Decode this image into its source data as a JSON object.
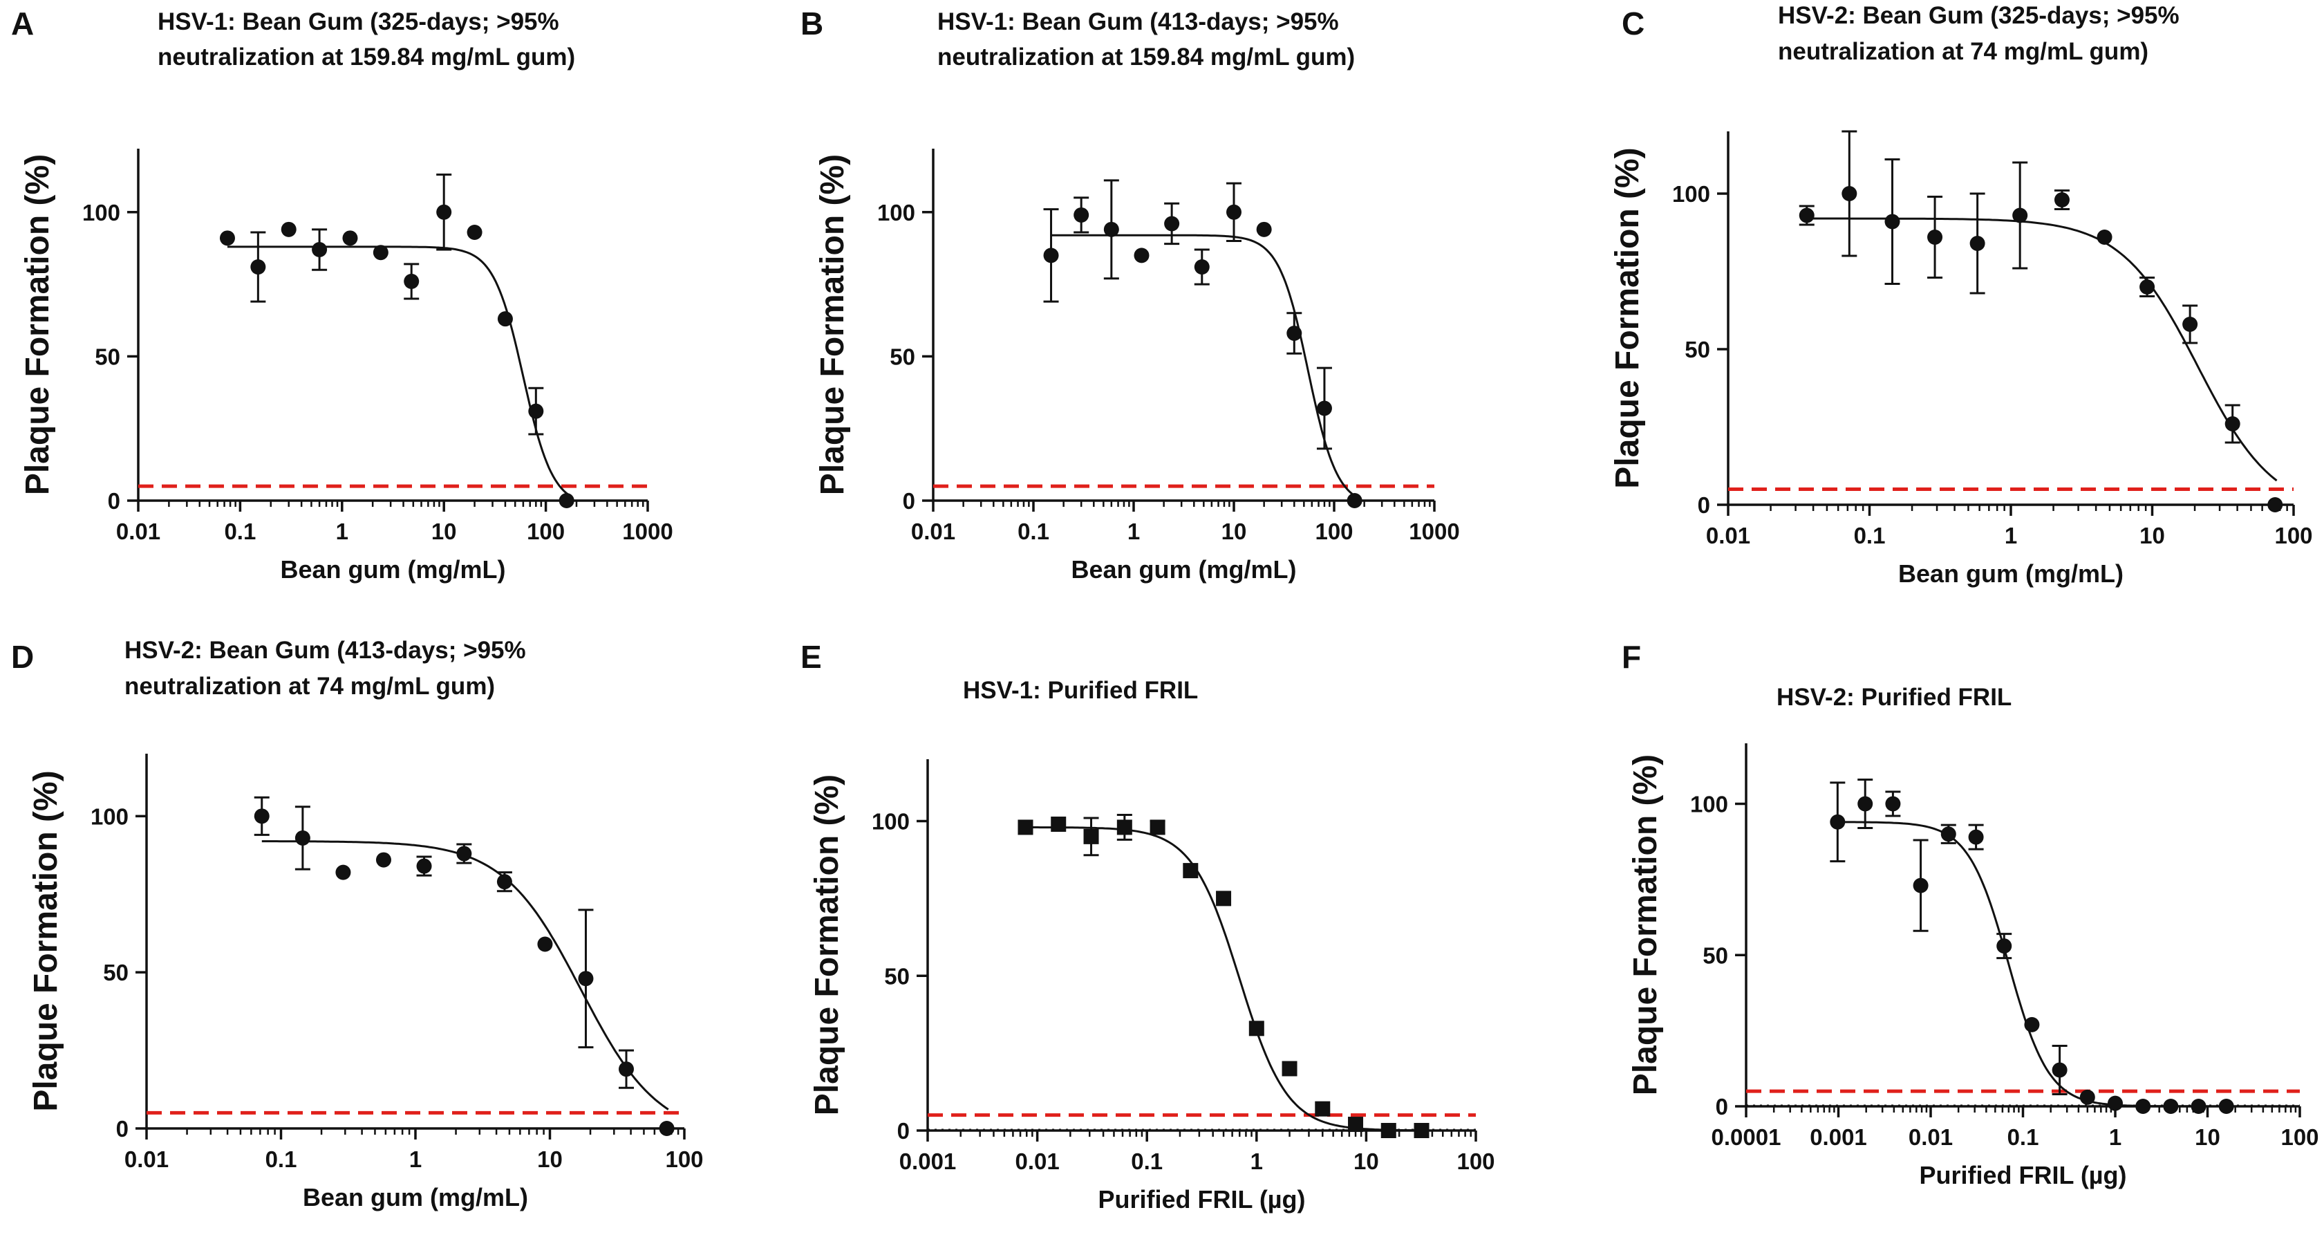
{
  "colors": {
    "ink": "#111111",
    "threshold": "#e0201b",
    "baseline": "#111111"
  },
  "chart_data": [
    {
      "panel": "A",
      "type": "scatter",
      "title": [
        "HSV-1: Bean Gum (325-days; >95%",
        "neutralization at 159.84 mg/mL gum)"
      ],
      "xlabel": "Bean gum (mg/mL)",
      "ylabel": "Plaque Formation (%)",
      "xscale": "log",
      "xlim": [
        0.01,
        1000
      ],
      "ylim": [
        0,
        122
      ],
      "xticks": [
        0.01,
        0.1,
        1,
        10,
        100,
        1000
      ],
      "xticklabels": [
        "0.01",
        "0.1",
        "1",
        "10",
        "100",
        "1000"
      ],
      "yticks": [
        0,
        50,
        100
      ],
      "yticklabels": [
        "0",
        "50",
        "100"
      ],
      "marker": "circle",
      "points": [
        {
          "x": 0.075,
          "y": 91
        },
        {
          "x": 0.15,
          "y": 81,
          "err": 12
        },
        {
          "x": 0.3,
          "y": 94
        },
        {
          "x": 0.6,
          "y": 87,
          "err": 7
        },
        {
          "x": 1.2,
          "y": 91
        },
        {
          "x": 2.4,
          "y": 86
        },
        {
          "x": 4.8,
          "y": 76,
          "err": 6
        },
        {
          "x": 10,
          "y": 100,
          "err": 13
        },
        {
          "x": 20,
          "y": 93
        },
        {
          "x": 40,
          "y": 63
        },
        {
          "x": 80,
          "y": 31,
          "err": 8
        },
        {
          "x": 160,
          "y": 0
        }
      ],
      "fit": {
        "top": 88,
        "bottom": -2,
        "ec50": 60,
        "hill": 3.0,
        "x_start": 0.075,
        "x_end": 165
      },
      "threshold": 5
    },
    {
      "panel": "B",
      "type": "scatter",
      "title": [
        "HSV-1: Bean Gum (413-days; >95%",
        "neutralization at 159.84 mg/mL gum)"
      ],
      "xlabel": "Bean gum (mg/mL)",
      "ylabel": "Plaque Formation (%)",
      "xscale": "log",
      "xlim": [
        0.01,
        1000
      ],
      "ylim": [
        0,
        122
      ],
      "xticks": [
        0.01,
        0.1,
        1,
        10,
        100,
        1000
      ],
      "xticklabels": [
        "0.01",
        "0.1",
        "1",
        "10",
        "100",
        "1000"
      ],
      "yticks": [
        0,
        50,
        100
      ],
      "yticklabels": [
        "0",
        "50",
        "100"
      ],
      "marker": "circle",
      "points": [
        {
          "x": 0.15,
          "y": 85,
          "err": 16
        },
        {
          "x": 0.3,
          "y": 99,
          "err": 6
        },
        {
          "x": 0.6,
          "y": 94,
          "err": 17
        },
        {
          "x": 1.2,
          "y": 85
        },
        {
          "x": 2.4,
          "y": 96,
          "err": 7
        },
        {
          "x": 4.8,
          "y": 81,
          "err": 6
        },
        {
          "x": 10,
          "y": 100,
          "err": 10
        },
        {
          "x": 20,
          "y": 94
        },
        {
          "x": 40,
          "y": 58,
          "err": 7
        },
        {
          "x": 80,
          "y": 32,
          "err": 14
        },
        {
          "x": 160,
          "y": 0
        }
      ],
      "fit": {
        "top": 92,
        "bottom": -2,
        "ec50": 55,
        "hill": 3.0,
        "x_start": 0.15,
        "x_end": 165
      },
      "threshold": 5
    },
    {
      "panel": "C",
      "type": "scatter",
      "title": [
        "HSV-2: Bean Gum (325-days; >95%",
        "neutralization at 74 mg/mL gum)"
      ],
      "xlabel": "Bean gum (mg/mL)",
      "ylabel": "Plaque Formation (%)",
      "xscale": "log",
      "xlim": [
        0.01,
        100
      ],
      "ylim": [
        0,
        120
      ],
      "xticks": [
        0.01,
        0.1,
        1,
        10,
        100
      ],
      "xticklabels": [
        "0.01",
        "0.1",
        "1",
        "10",
        "100"
      ],
      "yticks": [
        0,
        50,
        100
      ],
      "yticklabels": [
        "0",
        "50",
        "100"
      ],
      "marker": "circle",
      "points": [
        {
          "x": 0.036,
          "y": 93,
          "err": 3
        },
        {
          "x": 0.072,
          "y": 100,
          "err": 20
        },
        {
          "x": 0.145,
          "y": 91,
          "err": 20
        },
        {
          "x": 0.29,
          "y": 86,
          "err": 13
        },
        {
          "x": 0.58,
          "y": 84,
          "err": 16
        },
        {
          "x": 1.16,
          "y": 93,
          "err": 17
        },
        {
          "x": 2.3,
          "y": 98,
          "err": 3
        },
        {
          "x": 4.6,
          "y": 86
        },
        {
          "x": 9.2,
          "y": 70,
          "err": 3
        },
        {
          "x": 18.5,
          "y": 58,
          "err": 6
        },
        {
          "x": 37,
          "y": 26,
          "err": 6
        },
        {
          "x": 74,
          "y": 0
        }
      ],
      "fit": {
        "top": 92,
        "bottom": -3,
        "ec50": 21,
        "hill": 1.6,
        "x_start": 0.036,
        "x_end": 76
      },
      "threshold": 5
    },
    {
      "panel": "D",
      "type": "scatter",
      "title": [
        "HSV-2: Bean Gum (413-days; >95%",
        "neutralization at 74 mg/mL gum)"
      ],
      "xlabel": "Bean gum (mg/mL)",
      "ylabel": "Plaque Formation (%)",
      "xscale": "log",
      "xlim": [
        0.01,
        100
      ],
      "ylim": [
        0,
        120
      ],
      "xticks": [
        0.01,
        0.1,
        1,
        10,
        100
      ],
      "xticklabels": [
        "0.01",
        "0.1",
        "1",
        "10",
        "100"
      ],
      "yticks": [
        0,
        50,
        100
      ],
      "yticklabels": [
        "0",
        "50",
        "100"
      ],
      "marker": "circle",
      "points": [
        {
          "x": 0.072,
          "y": 100,
          "err": 6
        },
        {
          "x": 0.145,
          "y": 93,
          "err": 10
        },
        {
          "x": 0.29,
          "y": 82
        },
        {
          "x": 0.58,
          "y": 86
        },
        {
          "x": 1.16,
          "y": 84,
          "err": 3
        },
        {
          "x": 2.3,
          "y": 88,
          "err": 3
        },
        {
          "x": 4.6,
          "y": 79,
          "err": 3
        },
        {
          "x": 9.2,
          "y": 59
        },
        {
          "x": 18.5,
          "y": 48,
          "err": 22
        },
        {
          "x": 37,
          "y": 19,
          "err": 6
        },
        {
          "x": 74,
          "y": 0
        }
      ],
      "fit": {
        "top": 92,
        "bottom": -3,
        "ec50": 17,
        "hill": 1.5,
        "x_start": 0.072,
        "x_end": 76
      },
      "threshold": 5
    },
    {
      "panel": "E",
      "type": "scatter",
      "title": [
        "HSV-1: Purified FRIL"
      ],
      "xlabel": "Purified FRIL (µg)",
      "ylabel": "Plaque Formation (%)",
      "xscale": "log",
      "xlim": [
        0.001,
        100
      ],
      "ylim": [
        0,
        120
      ],
      "xticks": [
        0.001,
        0.01,
        0.1,
        1,
        10,
        100
      ],
      "xticklabels": [
        "0.001",
        "0.01",
        "0.1",
        "1",
        "10",
        "100"
      ],
      "yticks": [
        0,
        50,
        100
      ],
      "yticklabels": [
        "0",
        "50",
        "100"
      ],
      "marker": "square",
      "points": [
        {
          "x": 0.0078,
          "y": 98
        },
        {
          "x": 0.0156,
          "y": 99
        },
        {
          "x": 0.031,
          "y": 95,
          "err": 6
        },
        {
          "x": 0.0625,
          "y": 98,
          "err": 4
        },
        {
          "x": 0.125,
          "y": 98,
          "err": 2
        },
        {
          "x": 0.25,
          "y": 84
        },
        {
          "x": 0.5,
          "y": 75
        },
        {
          "x": 1,
          "y": 33
        },
        {
          "x": 2,
          "y": 20
        },
        {
          "x": 4,
          "y": 7
        },
        {
          "x": 8,
          "y": 2
        },
        {
          "x": 16,
          "y": 0
        },
        {
          "x": 32,
          "y": 0
        }
      ],
      "fit": {
        "top": 98,
        "bottom": 0,
        "ec50": 0.7,
        "hill": 2.0,
        "x_start": 0.0078,
        "x_end": 32
      },
      "threshold": 5,
      "baseline": 0
    },
    {
      "panel": "F",
      "type": "scatter",
      "title": [
        "HSV-2: Purified FRIL"
      ],
      "xlabel": "Purified FRIL (µg)",
      "ylabel": "Plaque Formation (%)",
      "xscale": "log",
      "xlim": [
        0.0001,
        100
      ],
      "ylim": [
        0,
        120
      ],
      "xticks": [
        0.0001,
        0.001,
        0.01,
        0.1,
        1,
        10,
        100
      ],
      "xticklabels": [
        "0.0001",
        "0.001",
        "0.01",
        "0.1",
        "1",
        "10",
        "100"
      ],
      "yticks": [
        0,
        50,
        100
      ],
      "yticklabels": [
        "0",
        "50",
        "100"
      ],
      "marker": "circle",
      "points": [
        {
          "x": 0.00098,
          "y": 94,
          "err": 13
        },
        {
          "x": 0.00195,
          "y": 100,
          "err": 8
        },
        {
          "x": 0.0039,
          "y": 100,
          "err": 4
        },
        {
          "x": 0.0078,
          "y": 73,
          "err": 15
        },
        {
          "x": 0.0156,
          "y": 90,
          "err": 3
        },
        {
          "x": 0.031,
          "y": 89,
          "err": 4
        },
        {
          "x": 0.0625,
          "y": 53,
          "err": 4
        },
        {
          "x": 0.125,
          "y": 27
        },
        {
          "x": 0.25,
          "y": 12,
          "err": 8
        },
        {
          "x": 0.5,
          "y": 3
        },
        {
          "x": 1,
          "y": 1
        },
        {
          "x": 2,
          "y": 0
        },
        {
          "x": 4,
          "y": 0
        },
        {
          "x": 8,
          "y": 0
        },
        {
          "x": 16,
          "y": 0
        }
      ],
      "fit": {
        "top": 94,
        "bottom": 0,
        "ec50": 0.07,
        "hill": 2.0,
        "x_start": 0.00098,
        "x_end": 16
      },
      "threshold": 5,
      "baseline": 0
    }
  ]
}
